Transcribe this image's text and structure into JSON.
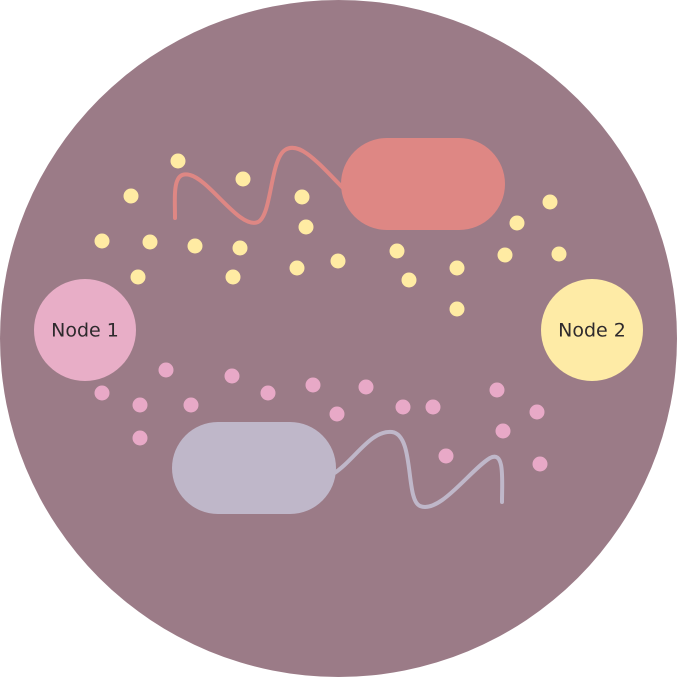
{
  "colors": {
    "dish": "#9b7b87",
    "node_1": "#e8aec7",
    "node_2": "#feeba6",
    "bacterium_top": "#de8784",
    "bacterium_bottom": "#bfb7c9",
    "molecules_yellow": "#ffeba3",
    "molecules_pink": "#e8a9c7"
  },
  "nodes": {
    "node_1": {
      "label": "Node 1"
    },
    "node_2": {
      "label": "Node 2"
    }
  }
}
